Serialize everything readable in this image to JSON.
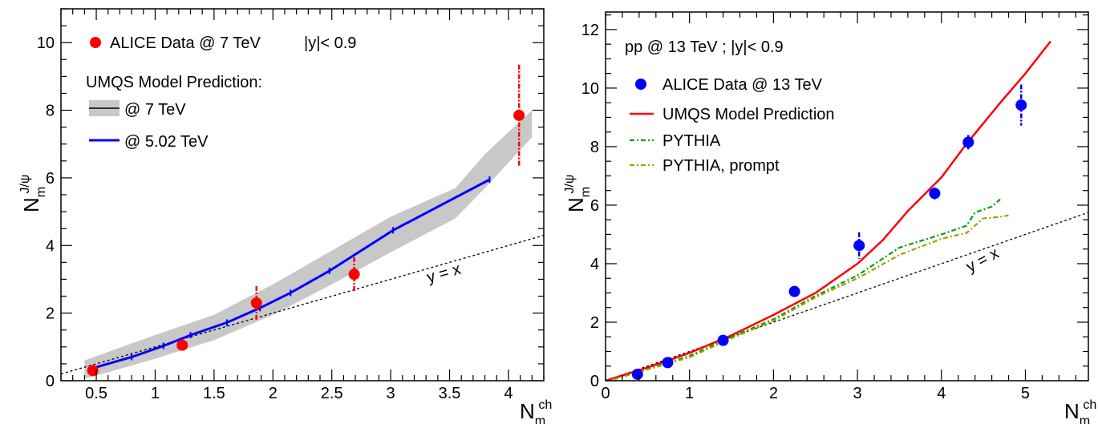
{
  "chart_data": [
    {
      "type": "scatter",
      "title": "",
      "xlim": [
        0.2,
        4.3
      ],
      "ylim": [
        0,
        11
      ],
      "x_ticks": [
        "0.5",
        "1",
        "1.5",
        "2",
        "2.5",
        "3",
        "3.5",
        "4"
      ],
      "y_ticks": [
        "0",
        "2",
        "4",
        "6",
        "8",
        "10"
      ],
      "xlabel": {
        "main": "N",
        "sub": "m",
        "sup": "ch"
      },
      "ylabel": {
        "main": "N",
        "sub": "m",
        "sup": "J/ψ"
      },
      "legend": {
        "data_label": "ALICE Data @ 7 TeV",
        "rapidity_label": "|y|< 0.9",
        "model_header": "UMQS Model Prediction:",
        "band_label": "@ 7 TeV",
        "line_label": "@ 5.02 TeV"
      },
      "diagonal_label": "y = x",
      "colors": {
        "data": "#ff0000",
        "model_5": "#0000ff",
        "band": "#c8c8c8"
      },
      "series": [
        {
          "name": "ALICE Data @ 7 TeV",
          "kind": "points",
          "x": [
            0.47,
            1.23,
            1.86,
            2.69,
            4.09
          ],
          "y": [
            0.3,
            1.05,
            2.3,
            3.15,
            7.85
          ],
          "err": [
            0.1,
            0.06,
            0.5,
            0.5,
            1.5
          ]
        },
        {
          "name": "@ 5.02 TeV",
          "kind": "line",
          "x": [
            0.45,
            0.8,
            1.07,
            1.3,
            1.61,
            1.89,
            2.15,
            2.48,
            3.02,
            3.84
          ],
          "y": [
            0.35,
            0.7,
            1.03,
            1.35,
            1.72,
            2.15,
            2.6,
            3.25,
            4.45,
            5.95
          ]
        },
        {
          "name": "@ 7 TeV",
          "kind": "band",
          "x": [
            0.4,
            1.0,
            1.5,
            2.0,
            2.5,
            3.0,
            3.55,
            3.8,
            4.2
          ],
          "y_low": [
            0.05,
            0.65,
            1.2,
            1.95,
            2.85,
            3.8,
            4.8,
            5.7,
            7.2
          ],
          "y_high": [
            0.6,
            1.35,
            1.95,
            2.85,
            3.85,
            4.85,
            5.7,
            6.7,
            8.0
          ]
        }
      ]
    },
    {
      "type": "scatter",
      "title": "",
      "xlim": [
        0,
        5.75
      ],
      "ylim": [
        0,
        12.6
      ],
      "x_ticks": [
        "0",
        "1",
        "2",
        "3",
        "4",
        "5"
      ],
      "y_ticks": [
        "0",
        "2",
        "4",
        "6",
        "8",
        "10",
        "12"
      ],
      "xlabel": {
        "main": "N",
        "sub": "m",
        "sup": "ch"
      },
      "ylabel": {
        "main": "N",
        "sub": "m",
        "sup": "J/ψ"
      },
      "header_text": "pp @ 13 TeV ;  |y|< 0.9",
      "legend": {
        "data_label": "ALICE Data @ 13 TeV",
        "model_label": "UMQS Model Prediction",
        "pythia_label": "PYTHIA",
        "pythia_prompt_label": "PYTHIA, prompt"
      },
      "diagonal_label": "y = x",
      "colors": {
        "data": "#0000ff",
        "model": "#ff0000",
        "pythia": "#00a000",
        "pythia_prompt": "#a0a000"
      },
      "series": [
        {
          "name": "ALICE Data @ 13 TeV",
          "kind": "points",
          "x": [
            0.38,
            0.74,
            1.4,
            2.25,
            3.02,
            3.92,
            4.32,
            4.95
          ],
          "y": [
            0.22,
            0.62,
            1.38,
            3.05,
            4.62,
            6.4,
            8.15,
            9.42
          ],
          "err": [
            0.05,
            0.08,
            0.1,
            0.1,
            0.45,
            0.2,
            0.25,
            0.7
          ]
        },
        {
          "name": "UMQS Model Prediction",
          "kind": "line",
          "x": [
            0,
            0.5,
            1.0,
            1.5,
            2.0,
            2.5,
            3.0,
            3.3,
            3.6,
            4.0,
            4.3,
            4.7,
            5.0,
            5.3
          ],
          "y": [
            0,
            0.45,
            0.95,
            1.55,
            2.25,
            3.0,
            4.0,
            4.8,
            5.8,
            6.95,
            8.1,
            9.5,
            10.5,
            11.6
          ]
        },
        {
          "name": "PYTHIA",
          "kind": "line",
          "x": [
            0.1,
            0.5,
            1.0,
            1.5,
            2.0,
            2.5,
            3.0,
            3.5,
            4.0,
            4.3,
            4.4,
            4.6,
            4.7
          ],
          "y": [
            0.05,
            0.4,
            0.85,
            1.5,
            2.1,
            2.9,
            3.6,
            4.55,
            5.0,
            5.3,
            5.75,
            5.95,
            6.2
          ]
        },
        {
          "name": "PYTHIA, prompt",
          "kind": "line",
          "x": [
            0.1,
            0.5,
            1.0,
            1.5,
            2.0,
            2.5,
            3.0,
            3.5,
            4.0,
            4.3,
            4.5,
            4.7,
            4.8
          ],
          "y": [
            0.05,
            0.38,
            0.8,
            1.45,
            2.05,
            2.85,
            3.5,
            4.3,
            4.85,
            5.05,
            5.55,
            5.6,
            5.65
          ]
        }
      ]
    }
  ]
}
